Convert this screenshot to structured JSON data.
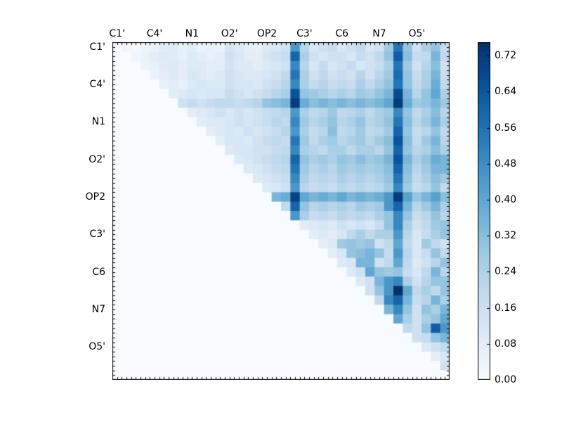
{
  "chart_data": {
    "type": "heatmap",
    "title": "",
    "xlabel": "",
    "ylabel": "",
    "matrix_size": 36,
    "triangular": "upper",
    "axis_tick_labels": [
      "C1'",
      "C4'",
      "N1",
      "O2'",
      "OP2",
      "C3'",
      "C6",
      "N7",
      "O5'"
    ],
    "label_cell_positions": [
      0,
      4,
      8,
      12,
      16,
      20,
      24,
      28,
      32
    ],
    "minor_ticks_per_cell": 2,
    "colormap": "Blues",
    "vmin": 0.0,
    "vmax": 0.75,
    "colormap_stops": [
      "#f7fbff",
      "#deebf7",
      "#c6dbef",
      "#9ecae1",
      "#6baed6",
      "#4292c6",
      "#2171b5",
      "#08519c",
      "#08306b"
    ],
    "frame_color": "#000000",
    "background_color": "#ffffff",
    "colorbar": {
      "tick_values": [
        0.0,
        0.08,
        0.16,
        0.24,
        0.32,
        0.4,
        0.48,
        0.56,
        0.64,
        0.72
      ],
      "tick_labels": [
        "0.00",
        "0.08",
        "0.16",
        "0.24",
        "0.32",
        "0.40",
        "0.48",
        "0.56",
        "0.64",
        "0.72"
      ],
      "position": "right"
    },
    "values": [
      [
        0,
        0.03,
        0.02,
        0.04,
        0.05,
        0.08,
        0.09,
        0.06,
        0.08,
        0.05,
        0.06,
        0.05,
        0.13,
        0.1,
        0.07,
        0.06,
        0.1,
        0.12,
        0.15,
        0.45,
        0.22,
        0.12,
        0.15,
        0.18,
        0.12,
        0.15,
        0.2,
        0.12,
        0.15,
        0.28,
        0.55,
        0.3,
        0.15,
        0.25,
        0.3,
        0.18
      ],
      [
        0,
        0,
        0.03,
        0.05,
        0.08,
        0.1,
        0.09,
        0.06,
        0.1,
        0.08,
        0.06,
        0.08,
        0.15,
        0.12,
        0.08,
        0.08,
        0.12,
        0.15,
        0.18,
        0.6,
        0.25,
        0.15,
        0.12,
        0.15,
        0.15,
        0.12,
        0.18,
        0.15,
        0.2,
        0.3,
        0.62,
        0.32,
        0.18,
        0.2,
        0.35,
        0.2
      ],
      [
        0,
        0,
        0,
        0.04,
        0.06,
        0.09,
        0.1,
        0.08,
        0.1,
        0.1,
        0.08,
        0.08,
        0.14,
        0.1,
        0.1,
        0.08,
        0.1,
        0.12,
        0.15,
        0.5,
        0.22,
        0.12,
        0.18,
        0.12,
        0.15,
        0.18,
        0.12,
        0.15,
        0.18,
        0.25,
        0.55,
        0.28,
        0.15,
        0.22,
        0.32,
        0.15
      ],
      [
        0,
        0,
        0,
        0,
        0.05,
        0.08,
        0.1,
        0.08,
        0.12,
        0.1,
        0.08,
        0.1,
        0.15,
        0.12,
        0.1,
        0.1,
        0.12,
        0.15,
        0.2,
        0.55,
        0.25,
        0.15,
        0.2,
        0.15,
        0.18,
        0.15,
        0.22,
        0.15,
        0.22,
        0.28,
        0.58,
        0.3,
        0.18,
        0.25,
        0.35,
        0.18
      ],
      [
        0,
        0,
        0,
        0,
        0,
        0.06,
        0.08,
        0.06,
        0.1,
        0.12,
        0.1,
        0.1,
        0.15,
        0.12,
        0.12,
        0.1,
        0.15,
        0.18,
        0.22,
        0.5,
        0.25,
        0.18,
        0.22,
        0.18,
        0.2,
        0.18,
        0.25,
        0.2,
        0.25,
        0.3,
        0.55,
        0.3,
        0.2,
        0.25,
        0.38,
        0.2
      ],
      [
        0,
        0,
        0,
        0,
        0,
        0,
        0.08,
        0.1,
        0.12,
        0.1,
        0.12,
        0.12,
        0.18,
        0.15,
        0.12,
        0.15,
        0.18,
        0.22,
        0.25,
        0.65,
        0.3,
        0.28,
        0.25,
        0.22,
        0.25,
        0.22,
        0.28,
        0.25,
        0.3,
        0.35,
        0.68,
        0.35,
        0.22,
        0.3,
        0.4,
        0.25
      ],
      [
        0,
        0,
        0,
        0,
        0,
        0,
        0,
        0.15,
        0.18,
        0.15,
        0.18,
        0.2,
        0.2,
        0.18,
        0.2,
        0.22,
        0.3,
        0.32,
        0.35,
        0.72,
        0.38,
        0.32,
        0.35,
        0.32,
        0.35,
        0.32,
        0.35,
        0.32,
        0.35,
        0.4,
        0.72,
        0.38,
        0.28,
        0.3,
        0.35,
        0.28
      ],
      [
        0,
        0,
        0,
        0,
        0,
        0,
        0,
        0,
        0.08,
        0.1,
        0.12,
        0.15,
        0.12,
        0.15,
        0.12,
        0.15,
        0.18,
        0.2,
        0.22,
        0.45,
        0.25,
        0.2,
        0.22,
        0.28,
        0.2,
        0.22,
        0.25,
        0.2,
        0.25,
        0.28,
        0.5,
        0.3,
        0.2,
        0.25,
        0.32,
        0.22
      ],
      [
        0,
        0,
        0,
        0,
        0,
        0,
        0,
        0,
        0,
        0.08,
        0.1,
        0.1,
        0.12,
        0.15,
        0.12,
        0.15,
        0.18,
        0.22,
        0.2,
        0.5,
        0.28,
        0.22,
        0.25,
        0.3,
        0.22,
        0.25,
        0.3,
        0.22,
        0.25,
        0.3,
        0.55,
        0.32,
        0.22,
        0.28,
        0.35,
        0.25
      ],
      [
        0,
        0,
        0,
        0,
        0,
        0,
        0,
        0,
        0,
        0,
        0.08,
        0.1,
        0.12,
        0.1,
        0.15,
        0.12,
        0.15,
        0.18,
        0.22,
        0.45,
        0.25,
        0.18,
        0.22,
        0.32,
        0.2,
        0.22,
        0.28,
        0.2,
        0.22,
        0.28,
        0.6,
        0.3,
        0.18,
        0.22,
        0.3,
        0.2
      ],
      [
        0,
        0,
        0,
        0,
        0,
        0,
        0,
        0,
        0,
        0,
        0,
        0.08,
        0.12,
        0.12,
        0.1,
        0.15,
        0.18,
        0.2,
        0.18,
        0.55,
        0.28,
        0.2,
        0.25,
        0.28,
        0.22,
        0.25,
        0.28,
        0.22,
        0.28,
        0.32,
        0.65,
        0.32,
        0.2,
        0.28,
        0.35,
        0.22
      ],
      [
        0,
        0,
        0,
        0,
        0,
        0,
        0,
        0,
        0,
        0,
        0,
        0,
        0.1,
        0.12,
        0.12,
        0.15,
        0.15,
        0.18,
        0.2,
        0.5,
        0.25,
        0.22,
        0.2,
        0.25,
        0.25,
        0.2,
        0.25,
        0.25,
        0.22,
        0.3,
        0.6,
        0.3,
        0.22,
        0.25,
        0.32,
        0.25
      ],
      [
        0,
        0,
        0,
        0,
        0,
        0,
        0,
        0,
        0,
        0,
        0,
        0,
        0,
        0.1,
        0.12,
        0.15,
        0.18,
        0.2,
        0.22,
        0.6,
        0.3,
        0.25,
        0.28,
        0.25,
        0.3,
        0.28,
        0.32,
        0.28,
        0.3,
        0.35,
        0.65,
        0.35,
        0.25,
        0.3,
        0.38,
        0.35
      ],
      [
        0,
        0,
        0,
        0,
        0,
        0,
        0,
        0,
        0,
        0,
        0,
        0,
        0,
        0,
        0.1,
        0.12,
        0.15,
        0.18,
        0.2,
        0.55,
        0.28,
        0.22,
        0.25,
        0.22,
        0.28,
        0.25,
        0.28,
        0.25,
        0.28,
        0.32,
        0.6,
        0.32,
        0.22,
        0.28,
        0.35,
        0.35
      ],
      [
        0,
        0,
        0,
        0,
        0,
        0,
        0,
        0,
        0,
        0,
        0,
        0,
        0,
        0,
        0,
        0.1,
        0.12,
        0.15,
        0.18,
        0.5,
        0.25,
        0.2,
        0.22,
        0.2,
        0.25,
        0.22,
        0.25,
        0.22,
        0.25,
        0.3,
        0.55,
        0.3,
        0.2,
        0.25,
        0.32,
        0.28
      ],
      [
        0,
        0,
        0,
        0,
        0,
        0,
        0,
        0,
        0,
        0,
        0,
        0,
        0,
        0,
        0,
        0,
        0.1,
        0.12,
        0.15,
        0.45,
        0.22,
        0.18,
        0.2,
        0.18,
        0.22,
        0.2,
        0.22,
        0.2,
        0.22,
        0.28,
        0.5,
        0.28,
        0.18,
        0.22,
        0.3,
        0.2
      ],
      [
        0,
        0,
        0,
        0,
        0,
        0,
        0,
        0,
        0,
        0,
        0,
        0,
        0,
        0,
        0,
        0,
        0,
        0.35,
        0.38,
        0.7,
        0.4,
        0.35,
        0.38,
        0.35,
        0.4,
        0.35,
        0.38,
        0.35,
        0.38,
        0.45,
        0.72,
        0.42,
        0.3,
        0.35,
        0.42,
        0.32
      ],
      [
        0,
        0,
        0,
        0,
        0,
        0,
        0,
        0,
        0,
        0,
        0,
        0,
        0,
        0,
        0,
        0,
        0,
        0,
        0.2,
        0.6,
        0.3,
        0.22,
        0.25,
        0.22,
        0.25,
        0.22,
        0.28,
        0.25,
        0.28,
        0.45,
        0.6,
        0.35,
        0.22,
        0.28,
        0.35,
        0.25
      ],
      [
        0,
        0,
        0,
        0,
        0,
        0,
        0,
        0,
        0,
        0,
        0,
        0,
        0,
        0,
        0,
        0,
        0,
        0,
        0,
        0.45,
        0.25,
        0.18,
        0.2,
        0.18,
        0.22,
        0.2,
        0.22,
        0.2,
        0.25,
        0.3,
        0.5,
        0.3,
        0.18,
        0.22,
        0.3,
        0.22
      ],
      [
        0,
        0,
        0,
        0,
        0,
        0,
        0,
        0,
        0,
        0,
        0,
        0,
        0,
        0,
        0,
        0,
        0,
        0,
        0,
        0,
        0.08,
        0.1,
        0.12,
        0.1,
        0.15,
        0.12,
        0.15,
        0.12,
        0.18,
        0.3,
        0.5,
        0.25,
        0.15,
        0.2,
        0.28,
        0.3
      ],
      [
        0,
        0,
        0,
        0,
        0,
        0,
        0,
        0,
        0,
        0,
        0,
        0,
        0,
        0,
        0,
        0,
        0,
        0,
        0,
        0,
        0,
        0.08,
        0.1,
        0.08,
        0.12,
        0.2,
        0.25,
        0.2,
        0.25,
        0.25,
        0.45,
        0.22,
        0.12,
        0.18,
        0.25,
        0.3
      ],
      [
        0,
        0,
        0,
        0,
        0,
        0,
        0,
        0,
        0,
        0,
        0,
        0,
        0,
        0,
        0,
        0,
        0,
        0,
        0,
        0,
        0,
        0,
        0.08,
        0.1,
        0.28,
        0.3,
        0.28,
        0.3,
        0.15,
        0.2,
        0.4,
        0.2,
        0.12,
        0.28,
        0.2,
        0.15
      ],
      [
        0,
        0,
        0,
        0,
        0,
        0,
        0,
        0,
        0,
        0,
        0,
        0,
        0,
        0,
        0,
        0,
        0,
        0,
        0,
        0,
        0,
        0,
        0,
        0.08,
        0.12,
        0.3,
        0.32,
        0.35,
        0.3,
        0.18,
        0.45,
        0.22,
        0.12,
        0.18,
        0.3,
        0.2
      ],
      [
        0,
        0,
        0,
        0,
        0,
        0,
        0,
        0,
        0,
        0,
        0,
        0,
        0,
        0,
        0,
        0,
        0,
        0,
        0,
        0,
        0,
        0,
        0,
        0,
        0.1,
        0.12,
        0.35,
        0.35,
        0.15,
        0.2,
        0.4,
        0.2,
        0.1,
        0.15,
        0.22,
        0.3
      ],
      [
        0,
        0,
        0,
        0,
        0,
        0,
        0,
        0,
        0,
        0,
        0,
        0,
        0,
        0,
        0,
        0,
        0,
        0,
        0,
        0,
        0,
        0,
        0,
        0,
        0,
        0.1,
        0.15,
        0.4,
        0.3,
        0.28,
        0.3,
        0.18,
        0.12,
        0.2,
        0.35,
        0.22
      ],
      [
        0,
        0,
        0,
        0,
        0,
        0,
        0,
        0,
        0,
        0,
        0,
        0,
        0,
        0,
        0,
        0,
        0,
        0,
        0,
        0,
        0,
        0,
        0,
        0,
        0,
        0,
        0.1,
        0.15,
        0.35,
        0.45,
        0.5,
        0.25,
        0.15,
        0.22,
        0.3,
        0.3
      ],
      [
        0,
        0,
        0,
        0,
        0,
        0,
        0,
        0,
        0,
        0,
        0,
        0,
        0,
        0,
        0,
        0,
        0,
        0,
        0,
        0,
        0,
        0,
        0,
        0,
        0,
        0,
        0,
        0.15,
        0.3,
        0.45,
        0.75,
        0.4,
        0.2,
        0.25,
        0.2,
        0.3
      ],
      [
        0,
        0,
        0,
        0,
        0,
        0,
        0,
        0,
        0,
        0,
        0,
        0,
        0,
        0,
        0,
        0,
        0,
        0,
        0,
        0,
        0,
        0,
        0,
        0,
        0,
        0,
        0,
        0,
        0.2,
        0.5,
        0.6,
        0.35,
        0.18,
        0.22,
        0.35,
        0.25
      ],
      [
        0,
        0,
        0,
        0,
        0,
        0,
        0,
        0,
        0,
        0,
        0,
        0,
        0,
        0,
        0,
        0,
        0,
        0,
        0,
        0,
        0,
        0,
        0,
        0,
        0,
        0,
        0,
        0,
        0,
        0.35,
        0.5,
        0.3,
        0.15,
        0.3,
        0.25,
        0.35
      ],
      [
        0,
        0,
        0,
        0,
        0,
        0,
        0,
        0,
        0,
        0,
        0,
        0,
        0,
        0,
        0,
        0,
        0,
        0,
        0,
        0,
        0,
        0,
        0,
        0,
        0,
        0,
        0,
        0,
        0,
        0,
        0.4,
        0.25,
        0.15,
        0.25,
        0.3,
        0.4
      ],
      [
        0,
        0,
        0,
        0,
        0,
        0,
        0,
        0,
        0,
        0,
        0,
        0,
        0,
        0,
        0,
        0,
        0,
        0,
        0,
        0,
        0,
        0,
        0,
        0,
        0,
        0,
        0,
        0,
        0,
        0,
        0,
        0.2,
        0.15,
        0.3,
        0.62,
        0.45
      ],
      [
        0,
        0,
        0,
        0,
        0,
        0,
        0,
        0,
        0,
        0,
        0,
        0,
        0,
        0,
        0,
        0,
        0,
        0,
        0,
        0,
        0,
        0,
        0,
        0,
        0,
        0,
        0,
        0,
        0,
        0,
        0,
        0,
        0.15,
        0.18,
        0.3,
        0.35
      ],
      [
        0,
        0,
        0,
        0,
        0,
        0,
        0,
        0,
        0,
        0,
        0,
        0,
        0,
        0,
        0,
        0,
        0,
        0,
        0,
        0,
        0,
        0,
        0,
        0,
        0,
        0,
        0,
        0,
        0,
        0,
        0,
        0,
        0,
        0.1,
        0.15,
        0.2
      ],
      [
        0,
        0,
        0,
        0,
        0,
        0,
        0,
        0,
        0,
        0,
        0,
        0,
        0,
        0,
        0,
        0,
        0,
        0,
        0,
        0,
        0,
        0,
        0,
        0,
        0,
        0,
        0,
        0,
        0,
        0,
        0,
        0,
        0,
        0,
        0.08,
        0.12
      ],
      [
        0,
        0,
        0,
        0,
        0,
        0,
        0,
        0,
        0,
        0,
        0,
        0,
        0,
        0,
        0,
        0,
        0,
        0,
        0,
        0,
        0,
        0,
        0,
        0,
        0,
        0,
        0,
        0,
        0,
        0,
        0,
        0,
        0,
        0,
        0,
        0.15
      ],
      [
        0,
        0,
        0,
        0,
        0,
        0,
        0,
        0,
        0,
        0,
        0,
        0,
        0,
        0,
        0,
        0,
        0,
        0,
        0,
        0,
        0,
        0,
        0,
        0,
        0,
        0,
        0,
        0,
        0,
        0,
        0,
        0,
        0,
        0,
        0,
        0
      ]
    ]
  }
}
